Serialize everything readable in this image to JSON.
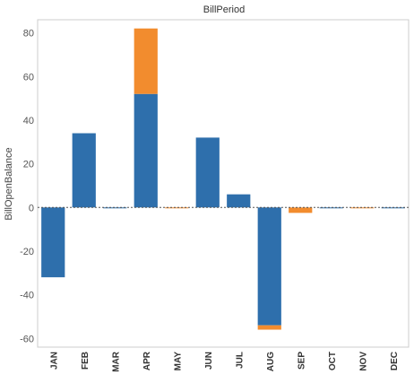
{
  "chart_data": {
    "type": "bar",
    "stacked": true,
    "title": "BillPeriod",
    "xlabel": "",
    "ylabel": "BillOpenBalance",
    "categories": [
      "JAN",
      "FEB",
      "MAR",
      "APR",
      "MAY",
      "JUN",
      "JUL",
      "AUG",
      "SEP",
      "OCT",
      "NOV",
      "DEC"
    ],
    "series": [
      {
        "color": "#2e6fac",
        "values": [
          -32,
          34,
          -0.3,
          52,
          0,
          32,
          6,
          -54,
          0,
          -0.3,
          0,
          -0.3
        ]
      },
      {
        "color": "#f28c2e",
        "values": [
          0,
          0,
          0,
          30,
          -0.3,
          0,
          0,
          -2,
          -2.5,
          0,
          -0.3,
          0
        ]
      }
    ],
    "ylim": [
      -64,
      86
    ],
    "yticks": [
      -60,
      -40,
      -20,
      0,
      20,
      40,
      60,
      80
    ],
    "grid": false,
    "legend": "none"
  }
}
